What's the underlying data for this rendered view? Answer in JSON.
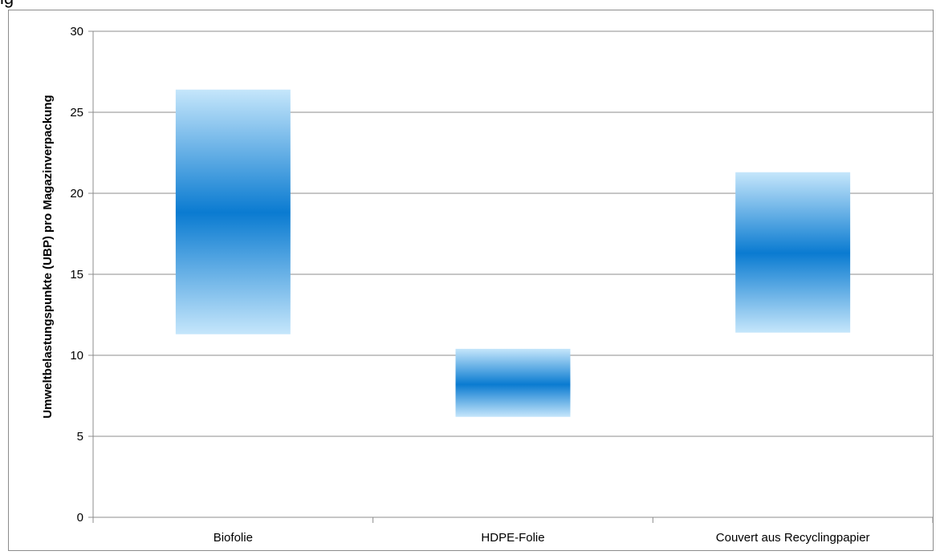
{
  "figure": {
    "clipped_title": "ig"
  },
  "colors": {
    "band_edge": "#c5e6fb",
    "band_center": "#0a7bd1",
    "grid": "#8c8c8c",
    "axis": "#8c8c8c"
  },
  "chart_data": {
    "type": "floating-bar",
    "title": "",
    "xlabel": "",
    "ylabel": "Umweltbelastungspunkte (UBP) pro Magazinverpackung",
    "ylim": [
      0,
      30
    ],
    "yticks": [
      0,
      5,
      10,
      15,
      20,
      25,
      30
    ],
    "grid": true,
    "categories": [
      "Biofolie",
      "HDPE-Folie",
      "Couvert aus Recyclingpapier"
    ],
    "ranges": [
      {
        "low": 11.3,
        "high": 26.4,
        "center": 18.8
      },
      {
        "low": 6.2,
        "high": 10.4,
        "center": 8.2
      },
      {
        "low": 11.4,
        "high": 21.3,
        "center": 16.3
      }
    ]
  }
}
